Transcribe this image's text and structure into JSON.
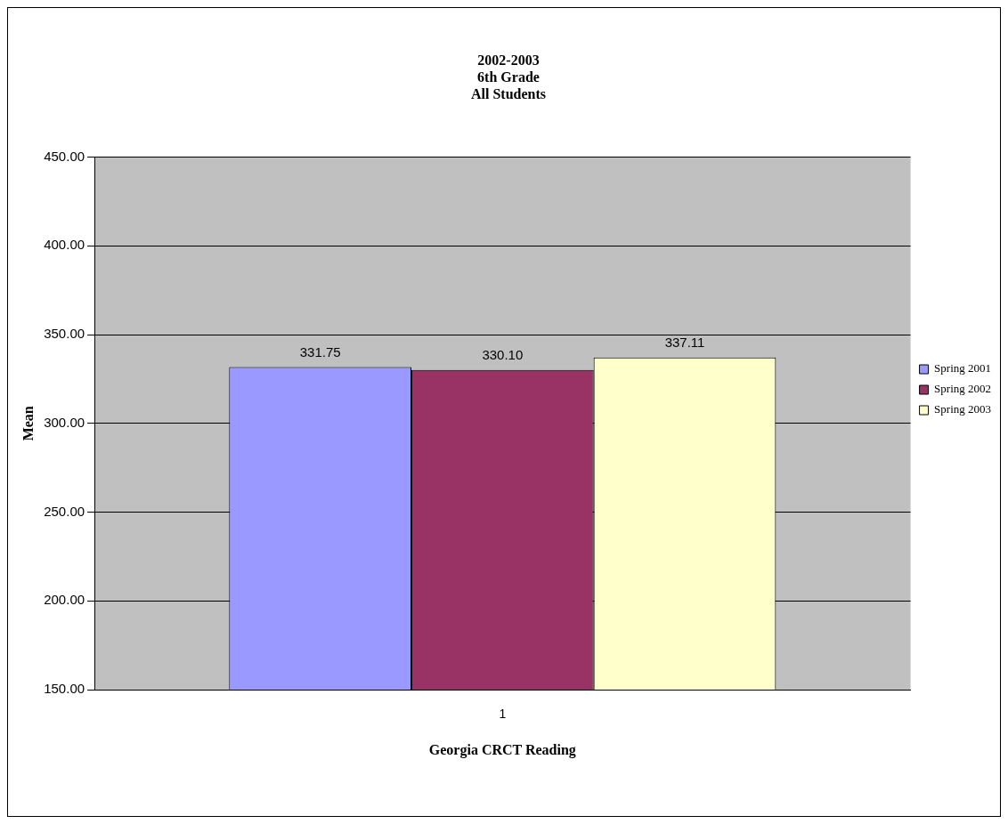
{
  "chart_data": {
    "type": "bar",
    "title": "2002-2003\n6th Grade\nAll Students",
    "xlabel": "Georgia CRCT Reading",
    "ylabel": "Mean",
    "categories": [
      "1"
    ],
    "series": [
      {
        "name": "Spring 2001",
        "color": "#9999ff",
        "values": [
          331.75
        ],
        "value_labels": [
          "331.75"
        ]
      },
      {
        "name": "Spring 2002",
        "color": "#993366",
        "values": [
          330.1
        ],
        "value_labels": [
          "330.10"
        ]
      },
      {
        "name": "Spring 2003",
        "color": "#ffffcc",
        "values": [
          337.11
        ],
        "value_labels": [
          "337.11"
        ]
      }
    ],
    "ylim": [
      150,
      450
    ],
    "yticks": [
      {
        "value": 150,
        "label": "150.00"
      },
      {
        "value": 200,
        "label": "200.00"
      },
      {
        "value": 250,
        "label": "250.00"
      },
      {
        "value": 300,
        "label": "300.00"
      },
      {
        "value": 350,
        "label": "350.00"
      },
      {
        "value": 400,
        "label": "400.00"
      },
      {
        "value": 450,
        "label": "450.00"
      }
    ],
    "grid": "y",
    "legend": "right"
  }
}
